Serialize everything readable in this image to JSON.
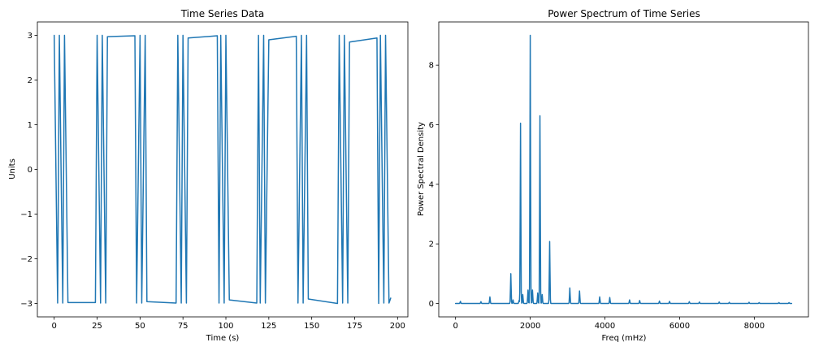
{
  "chart_data": [
    {
      "type": "line",
      "title": "Time Series Data",
      "xlabel": "Time (s)",
      "ylabel": "Units",
      "xlim": [
        -9.8,
        206
      ],
      "ylim": [
        -3.3,
        3.3
      ],
      "xticks": [
        0,
        25,
        50,
        75,
        100,
        125,
        150,
        175,
        200
      ],
      "yticks": [
        -3,
        -2,
        -1,
        0,
        1,
        2,
        3
      ],
      "ytick_labels": [
        "−3",
        "−2",
        "−1",
        "0",
        "1",
        "2",
        "3"
      ],
      "grid": false,
      "series": [
        {
          "color": "#1f77b4",
          "x": [
            0,
            2,
            3,
            5,
            6,
            8,
            24,
            25,
            27,
            28,
            30,
            31,
            47,
            48,
            50,
            51,
            53,
            54,
            71,
            72,
            74,
            75,
            77,
            78,
            95,
            96,
            97,
            99,
            100,
            102,
            118,
            119,
            120,
            122,
            123,
            125,
            141,
            142,
            144,
            145,
            147,
            148,
            165,
            166,
            168,
            169,
            171,
            172,
            188,
            189,
            190,
            192,
            193,
            195,
            196
          ],
          "y": [
            3,
            -2.99,
            3,
            -2.99,
            3,
            -2.98,
            -2.98,
            3,
            -2.99,
            3,
            -2.99,
            2.97,
            2.99,
            -2.99,
            3,
            -2.99,
            3,
            -2.96,
            -2.99,
            3,
            -2.99,
            3,
            -2.99,
            2.94,
            2.99,
            -2.99,
            3,
            -2.99,
            3,
            -2.92,
            -2.99,
            3,
            -2.99,
            3,
            -2.99,
            2.9,
            2.98,
            -2.99,
            3,
            -2.99,
            3,
            -2.9,
            -3,
            3,
            -2.99,
            3,
            -2.99,
            2.85,
            2.94,
            -3,
            3,
            -2.99,
            3,
            -2.99,
            -2.88
          ]
        }
      ]
    },
    {
      "type": "line",
      "title": "Power Spectrum of Time Series",
      "xlabel": "Freq (mHz)",
      "ylabel": "Power Spectral Density",
      "xlim": [
        -450,
        9450
      ],
      "ylim": [
        -0.45,
        9.45
      ],
      "xticks": [
        0,
        2000,
        4000,
        6000,
        8000
      ],
      "yticks": [
        0,
        2,
        4,
        6,
        8
      ],
      "grid": false,
      "series": [
        {
          "color": "#1f77b4",
          "peaks": [
            {
              "x": 130,
              "y": 0.07
            },
            {
              "x": 680,
              "y": 0.06
            },
            {
              "x": 920,
              "y": 0.22
            },
            {
              "x": 1480,
              "y": 1.0
            },
            {
              "x": 1540,
              "y": 0.12
            },
            {
              "x": 1700,
              "y": 0.1
            },
            {
              "x": 1740,
              "y": 6.05
            },
            {
              "x": 1800,
              "y": 0.3
            },
            {
              "x": 1940,
              "y": 0.45
            },
            {
              "x": 2000,
              "y": 9.0
            },
            {
              "x": 2060,
              "y": 0.45
            },
            {
              "x": 2200,
              "y": 0.35
            },
            {
              "x": 2260,
              "y": 6.3
            },
            {
              "x": 2320,
              "y": 0.3
            },
            {
              "x": 2520,
              "y": 2.08
            },
            {
              "x": 3060,
              "y": 0.52
            },
            {
              "x": 3320,
              "y": 0.42
            },
            {
              "x": 3860,
              "y": 0.22
            },
            {
              "x": 4130,
              "y": 0.2
            },
            {
              "x": 4660,
              "y": 0.12
            },
            {
              "x": 4930,
              "y": 0.1
            },
            {
              "x": 5460,
              "y": 0.08
            },
            {
              "x": 5730,
              "y": 0.07
            },
            {
              "x": 6260,
              "y": 0.06
            },
            {
              "x": 6530,
              "y": 0.05
            },
            {
              "x": 7060,
              "y": 0.05
            },
            {
              "x": 7330,
              "y": 0.04
            },
            {
              "x": 7860,
              "y": 0.04
            },
            {
              "x": 8130,
              "y": 0.03
            },
            {
              "x": 8660,
              "y": 0.03
            },
            {
              "x": 8930,
              "y": 0.03
            }
          ],
          "x_range": [
            0,
            9000
          ],
          "baseline": 0.0
        }
      ]
    }
  ]
}
